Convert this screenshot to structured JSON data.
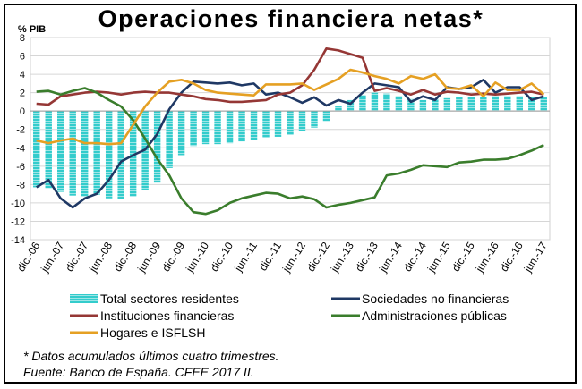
{
  "chart_data": {
    "type": "bar",
    "title": "Operaciones financiera netas*",
    "ylabel": "% PIB",
    "ylim": [
      -14,
      8
    ],
    "yticks": [
      8,
      6,
      4,
      2,
      0,
      -2,
      -4,
      -6,
      -8,
      -10,
      -12,
      -14
    ],
    "grid": true,
    "legend_position": "bottom",
    "xtick_labels": [
      "dic.-06",
      "jun.-07",
      "dic.-07",
      "jun.-08",
      "dic.-08",
      "jun.-09",
      "dic.-09",
      "jun.-10",
      "dic.-10",
      "jun.-11",
      "dic.-11",
      "jun.-12",
      "dic.-12",
      "jun.-13",
      "dic.-13",
      "jun.-14",
      "dic.-14",
      "jun.-15",
      "dic.-15",
      "jun.-16",
      "dic.-16",
      "jun.-17"
    ],
    "quarters": [
      "dic.-06",
      "mar.-07",
      "jun.-07",
      "sep.-07",
      "dic.-07",
      "mar.-08",
      "jun.-08",
      "sep.-08",
      "dic.-08",
      "mar.-09",
      "jun.-09",
      "sep.-09",
      "dic.-09",
      "mar.-10",
      "jun.-10",
      "sep.-10",
      "dic.-10",
      "mar.-11",
      "jun.-11",
      "sep.-11",
      "dic.-11",
      "mar.-12",
      "jun.-12",
      "sep.-12",
      "dic.-12",
      "mar.-13",
      "jun.-13",
      "sep.-13",
      "dic.-13",
      "mar.-14",
      "jun.-14",
      "sep.-14",
      "dic.-14",
      "mar.-15",
      "jun.-15",
      "sep.-15",
      "dic.-15",
      "mar.-16",
      "jun.-16",
      "sep.-16",
      "dic.-16",
      "mar.-17",
      "jun.-17"
    ],
    "series": [
      {
        "name": "Total sectores residentes",
        "kind": "bar",
        "color": "#33cccc",
        "values": [
          -8.3,
          -8.4,
          -8.8,
          -9.2,
          -9.3,
          -9.1,
          -9.5,
          -9.6,
          -9.3,
          -8.6,
          -7.8,
          -6.2,
          -4.8,
          -3.8,
          -3.6,
          -3.6,
          -3.5,
          -3.3,
          -3.1,
          -2.9,
          -2.8,
          -2.6,
          -2.2,
          -1.8,
          -1.1,
          0.5,
          1.2,
          1.7,
          2.0,
          1.9,
          1.6,
          1.3,
          1.2,
          1.3,
          1.4,
          1.5,
          1.5,
          1.5,
          1.6,
          1.6,
          1.6,
          1.5,
          1.5
        ]
      },
      {
        "name": "Sociedades no financieras",
        "kind": "line",
        "color": "#1f3864",
        "values": [
          -8.3,
          -7.5,
          -9.5,
          -10.5,
          -9.5,
          -9.0,
          -7.5,
          -5.5,
          -4.8,
          -4.2,
          -2.5,
          0.2,
          2.0,
          3.2,
          3.1,
          3.0,
          3.1,
          2.8,
          3.0,
          1.8,
          2.0,
          1.5,
          0.9,
          1.5,
          0.6,
          1.2,
          0.8,
          2.0,
          3.0,
          2.8,
          2.6,
          1.0,
          1.6,
          1.2,
          2.6,
          2.4,
          2.6,
          3.4,
          2.0,
          2.6,
          2.6,
          1.2,
          1.6
        ]
      },
      {
        "name": "Instituciones financieras",
        "kind": "line",
        "color": "#953735",
        "values": [
          0.8,
          0.7,
          1.6,
          1.8,
          2.0,
          2.1,
          2.0,
          1.8,
          2.0,
          2.1,
          2.0,
          2.0,
          1.8,
          1.6,
          1.3,
          1.2,
          1.0,
          1.0,
          1.1,
          1.2,
          1.8,
          2.0,
          2.8,
          4.5,
          6.8,
          6.6,
          6.2,
          5.8,
          2.2,
          2.5,
          2.2,
          1.8,
          2.3,
          1.8,
          2.1,
          2.0,
          1.8,
          1.9,
          1.8,
          1.9,
          2.0,
          2.1,
          1.8
        ]
      },
      {
        "name": "Administraciones públicas",
        "kind": "line",
        "color": "#3a7d2c",
        "values": [
          2.1,
          2.2,
          1.8,
          2.2,
          2.5,
          2.0,
          1.2,
          0.5,
          -1.0,
          -3.0,
          -5.2,
          -7.0,
          -9.5,
          -11.0,
          -11.2,
          -10.8,
          -10.0,
          -9.5,
          -9.2,
          -8.9,
          -9.0,
          -9.5,
          -9.3,
          -9.6,
          -10.5,
          -10.2,
          -10.0,
          -9.7,
          -9.4,
          -7.0,
          -6.8,
          -6.4,
          -5.9,
          -6.0,
          -6.1,
          -5.6,
          -5.5,
          -5.3,
          -5.3,
          -5.2,
          -4.8,
          -4.3,
          -3.7
        ]
      },
      {
        "name": "Hogares e ISFLSH",
        "kind": "line",
        "color": "#e5a023",
        "values": [
          -3.2,
          -3.5,
          -3.2,
          -3.0,
          -3.5,
          -3.5,
          -3.6,
          -3.5,
          -1.5,
          0.5,
          2.0,
          3.2,
          3.4,
          3.0,
          2.3,
          2.0,
          1.9,
          1.8,
          1.7,
          2.9,
          2.9,
          2.9,
          3.0,
          2.3,
          2.9,
          3.5,
          4.5,
          4.2,
          3.8,
          3.5,
          3.0,
          3.8,
          3.5,
          4.0,
          2.5,
          2.4,
          2.8,
          1.6,
          3.1,
          2.3,
          2.3,
          3.0,
          1.8
        ]
      }
    ]
  },
  "notes": {
    "note1": "* Datos acumulados últimos cuatro trimestres.",
    "note2": "Fuente: Banco de España. CFEE 2017 II."
  }
}
